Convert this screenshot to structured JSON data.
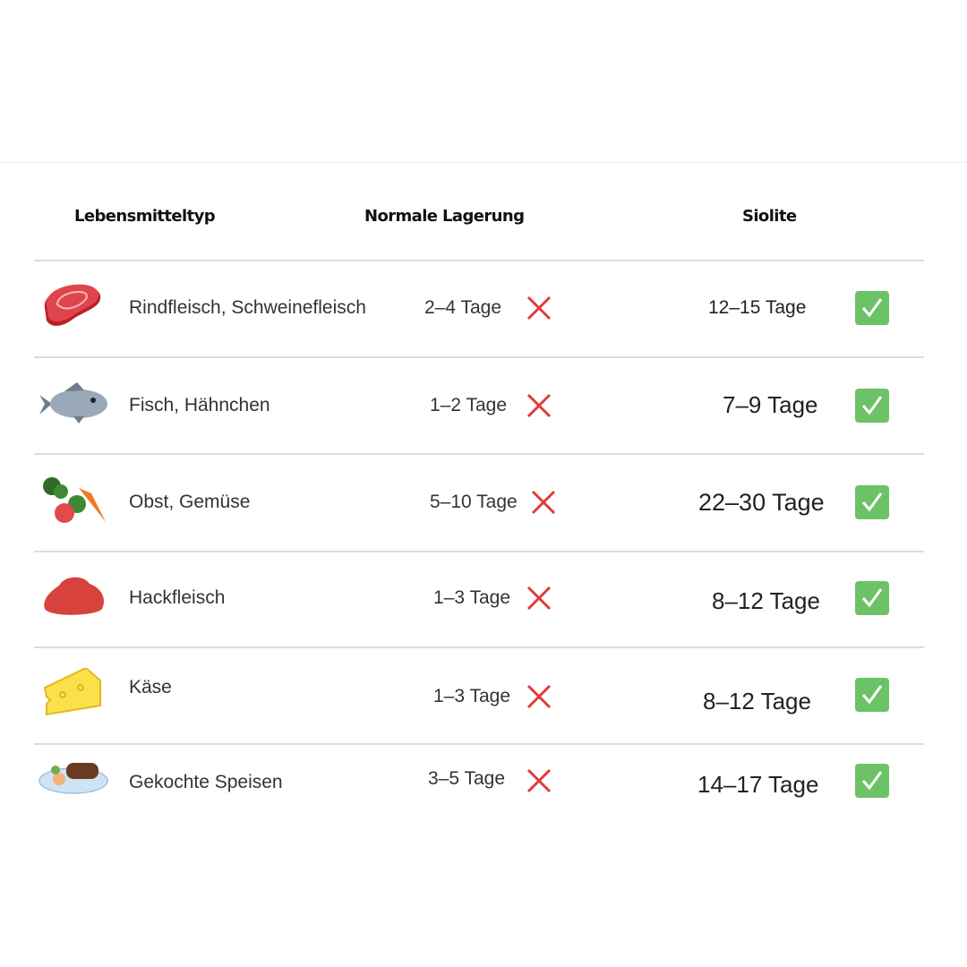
{
  "table": {
    "headers": {
      "food_type": "Lebensmitteltyp",
      "normal": "Normale Lagerung",
      "siolite": "Siolite"
    },
    "rows": [
      {
        "icon": "steak-icon",
        "name": "Rindfleisch, Schweinefleisch",
        "normal": "2–4 Tage",
        "siolite": "12–15 Tage"
      },
      {
        "icon": "fish-icon",
        "name": "Fisch, Hähnchen",
        "normal": "1–2 Tage",
        "siolite": "7–9 Tage"
      },
      {
        "icon": "vegetables-icon",
        "name": "Obst, Gemüse",
        "normal": "5–10 Tage",
        "siolite": "22–30 Tage"
      },
      {
        "icon": "minced-meat-icon",
        "name": "Hackfleisch",
        "normal": "1–3 Tage",
        "siolite": "8–12 Tage"
      },
      {
        "icon": "cheese-icon",
        "name": "Käse",
        "normal": "1–3 Tage",
        "siolite": "8–12 Tage"
      },
      {
        "icon": "cooked-meal-icon",
        "name": "Gekochte Speisen",
        "normal": "3–5 Tage",
        "siolite": "14–17 Tage"
      }
    ]
  },
  "colors": {
    "cross": "#e03a3a",
    "check": "#6cc267"
  }
}
